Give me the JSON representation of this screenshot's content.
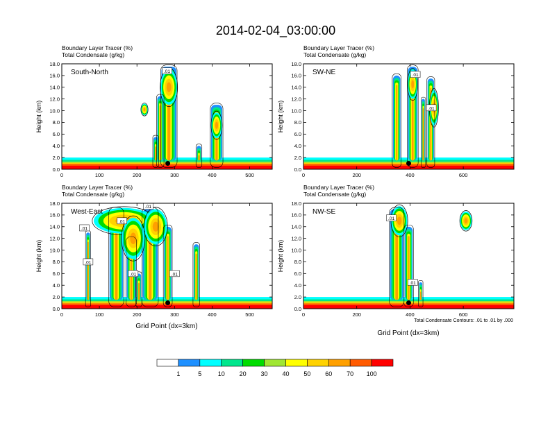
{
  "main_title": "2014-02-04_03:00:00",
  "colors": {
    "scale": [
      "#ffffff",
      "#1e90ff",
      "#00ffff",
      "#00e68c",
      "#00dc00",
      "#a0e632",
      "#ffff00",
      "#ffd200",
      "#ffa000",
      "#ff5a00",
      "#ff0000"
    ],
    "contour": "#000000",
    "marker": "#000000"
  },
  "colorbar": {
    "labels": [
      "1",
      "5",
      "10",
      "20",
      "30",
      "40",
      "50",
      "60",
      "70",
      "100"
    ]
  },
  "panel_label_line1": "Boundary Layer Tracer   (%)",
  "panel_label_line2": "Total Condensate   (g/kg)",
  "y_axis_label": "Height (km)",
  "x_axis_label": "Grid Point (dx=3km)",
  "contour_note": "Total Condensate Contours: .01 to .01 by .000",
  "chart_data": [
    {
      "type": "heatmap",
      "title": "South-North",
      "xlabel": "",
      "ylabel": "Height (km)",
      "xlim": [
        0,
        560
      ],
      "ylim": [
        0,
        18
      ],
      "xticks": [
        0,
        100,
        200,
        300,
        400,
        500
      ],
      "yticks": [
        0,
        2,
        4,
        6,
        8,
        10,
        12,
        14,
        16,
        18
      ],
      "ytick_labels": [
        "0.0",
        "2.0",
        "4.0",
        "6.0",
        "8.0",
        "10.0",
        "12.0",
        "14.0",
        "16.0",
        "18.0"
      ],
      "marker": {
        "x": 282,
        "y": 1.0
      },
      "contour_labels": [
        {
          "text": ".01",
          "x": 280,
          "y": 16.8
        }
      ],
      "plumes": [
        {
          "x": 285,
          "halfwidth": 20,
          "top": 17.5
        },
        {
          "x": 262,
          "halfwidth": 8,
          "top": 12.5
        },
        {
          "x": 365,
          "halfwidth": 6,
          "top": 4.0
        },
        {
          "x": 412,
          "halfwidth": 15,
          "top": 11.0
        },
        {
          "x": 250,
          "halfwidth": 6,
          "top": 5.5
        }
      ],
      "clouds": [
        {
          "x": 285,
          "y": 14.0,
          "rx": 22,
          "ry": 3.0
        },
        {
          "x": 412,
          "y": 7.5,
          "rx": 14,
          "ry": 2.2
        },
        {
          "x": 220,
          "y": 10.2,
          "rx": 9,
          "ry": 1.0
        }
      ]
    },
    {
      "type": "heatmap",
      "title": "SW-NE",
      "xlabel": "",
      "ylabel": "Height (km)",
      "xlim": [
        0,
        790
      ],
      "ylim": [
        0,
        18
      ],
      "xticks": [
        0,
        200,
        400,
        600
      ],
      "yticks": [
        0,
        2,
        4,
        6,
        8,
        10,
        12,
        14,
        16,
        18
      ],
      "ytick_labels": [
        "0.0",
        "2.0",
        "4.0",
        "6.0",
        "8.0",
        "10.0",
        "12.0",
        "14.0",
        "16.0",
        "18.0"
      ],
      "marker": {
        "x": 395,
        "y": 1.0
      },
      "contour_labels": [
        {
          "text": ".01",
          "x": 420,
          "y": 16.2
        },
        {
          "text": ".01",
          "x": 480,
          "y": 10.5
        }
      ],
      "plumes": [
        {
          "x": 350,
          "halfwidth": 14,
          "top": 16.0
        },
        {
          "x": 410,
          "halfwidth": 18,
          "top": 17.5
        },
        {
          "x": 478,
          "halfwidth": 12,
          "top": 15.5
        },
        {
          "x": 450,
          "halfwidth": 6,
          "top": 12.0
        }
      ],
      "clouds": [
        {
          "x": 410,
          "y": 14.5,
          "rx": 18,
          "ry": 2.5
        },
        {
          "x": 490,
          "y": 10.5,
          "rx": 16,
          "ry": 3.0
        }
      ]
    },
    {
      "type": "heatmap",
      "title": "West-East",
      "xlabel": "Grid Point (dx=3km)",
      "ylabel": "Height (km)",
      "xlim": [
        0,
        560
      ],
      "ylim": [
        0,
        18
      ],
      "xticks": [
        0,
        100,
        200,
        300,
        400,
        500
      ],
      "yticks": [
        0,
        2,
        4,
        6,
        8,
        10,
        12,
        14,
        16,
        18
      ],
      "ytick_labels": [
        "0.0",
        "2.0",
        "4.0",
        "6.0",
        "8.0",
        "10.0",
        "12.0",
        "14.0",
        "16.0",
        "18.0"
      ],
      "marker": {
        "x": 282,
        "y": 1.0
      },
      "contour_labels": [
        {
          "text": ".01",
          "x": 230,
          "y": 17.5
        },
        {
          "text": ".01",
          "x": 60,
          "y": 13.8
        },
        {
          "text": ".01",
          "x": 160,
          "y": 15.0
        },
        {
          "text": ".01",
          "x": 70,
          "y": 8.0
        },
        {
          "text": ".01",
          "x": 190,
          "y": 6.0
        },
        {
          "text": ".01",
          "x": 300,
          "y": 6.0
        }
      ],
      "plumes": [
        {
          "x": 70,
          "halfwidth": 5,
          "top": 13.0
        },
        {
          "x": 145,
          "halfwidth": 18,
          "top": 17.0
        },
        {
          "x": 185,
          "halfwidth": 12,
          "top": 12.0
        },
        {
          "x": 235,
          "halfwidth": 20,
          "top": 17.0
        },
        {
          "x": 282,
          "halfwidth": 10,
          "top": 14.0
        },
        {
          "x": 358,
          "halfwidth": 7,
          "top": 11.0
        },
        {
          "x": 205,
          "halfwidth": 6,
          "top": 6.0
        }
      ],
      "clouds": [
        {
          "x": 165,
          "y": 15.0,
          "rx": 80,
          "ry": 2.2
        },
        {
          "x": 190,
          "y": 12.0,
          "rx": 30,
          "ry": 3.5
        },
        {
          "x": 250,
          "y": 14.0,
          "rx": 30,
          "ry": 3.0
        }
      ]
    },
    {
      "type": "heatmap",
      "title": "NW-SE",
      "xlabel": "Grid Point (dx=3km)",
      "ylabel": "Height (km)",
      "xlim": [
        0,
        790
      ],
      "ylim": [
        0,
        18
      ],
      "xticks": [
        0,
        200,
        400,
        600
      ],
      "yticks": [
        0,
        2,
        4,
        6,
        8,
        10,
        12,
        14,
        16,
        18
      ],
      "ytick_labels": [
        "0.0",
        "2.0",
        "4.0",
        "6.0",
        "8.0",
        "10.0",
        "12.0",
        "14.0",
        "16.0",
        "18.0"
      ],
      "marker": {
        "x": 395,
        "y": 1.0
      },
      "contour_labels": [
        {
          "text": ".01",
          "x": 330,
          "y": 15.5
        },
        {
          "text": ".01",
          "x": 410,
          "y": 4.5
        }
      ],
      "plumes": [
        {
          "x": 350,
          "halfwidth": 25,
          "top": 17.0
        },
        {
          "x": 395,
          "halfwidth": 15,
          "top": 14.0
        },
        {
          "x": 440,
          "halfwidth": 6,
          "top": 4.5
        }
      ],
      "clouds": [
        {
          "x": 360,
          "y": 15.0,
          "rx": 30,
          "ry": 2.5
        },
        {
          "x": 610,
          "y": 15.0,
          "rx": 22,
          "ry": 1.6
        }
      ]
    }
  ]
}
